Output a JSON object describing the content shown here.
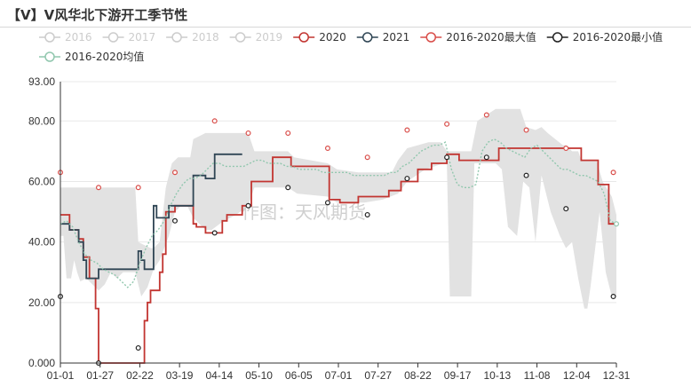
{
  "title": "【V】V风华北下游开工季节性",
  "watermark": "作图：天风期货",
  "chart_data": {
    "type": "line",
    "title": "【V】V风华北下游开工季节性",
    "xlabel": "",
    "ylabel": "",
    "x_tick_labels": [
      "01-01",
      "01-27",
      "02-22",
      "03-19",
      "04-14",
      "05-10",
      "06-05",
      "07-01",
      "07-27",
      "08-22",
      "09-17",
      "10-13",
      "11-08",
      "12-04",
      "12-31"
    ],
    "y_tick_labels": [
      "0.000",
      "20.00",
      "40.00",
      "60.00",
      "80.00",
      "93.00"
    ],
    "ylim": [
      0,
      93
    ],
    "x_domain_days": [
      1,
      365
    ],
    "grid": "horizontal",
    "legend_position": "top",
    "legend": [
      {
        "name": "2016",
        "color": "#cccccc",
        "active": false
      },
      {
        "name": "2017",
        "color": "#cccccc",
        "active": false
      },
      {
        "name": "2018",
        "color": "#cccccc",
        "active": false
      },
      {
        "name": "2019",
        "color": "#cccccc",
        "active": false
      },
      {
        "name": "2020",
        "color": "#c23531",
        "active": true
      },
      {
        "name": "2021",
        "color": "#2f4554",
        "active": true
      },
      {
        "name": "2016-2020最大值",
        "color": "#d94e4a",
        "active": true
      },
      {
        "name": "2016-2020最小值",
        "color": "#222222",
        "active": true
      },
      {
        "name": "2016-2020均值",
        "color": "#91c7ae",
        "active": true
      }
    ],
    "colors": {
      "s2020": "#c23531",
      "s2021": "#2f4554",
      "max": "#d94e4a",
      "min": "#222222",
      "mean": "#91c7ae",
      "band": "#e2e2e2",
      "grid": "#e8e8e8",
      "axis": "#333333"
    },
    "series": [
      {
        "name": "2020",
        "step": true,
        "points": [
          [
            1,
            49
          ],
          [
            5,
            49
          ],
          [
            7,
            44
          ],
          [
            10,
            44
          ],
          [
            13,
            41
          ],
          [
            16,
            35
          ],
          [
            18,
            35
          ],
          [
            20,
            28
          ],
          [
            22,
            28
          ],
          [
            24,
            18
          ],
          [
            26,
            0
          ],
          [
            54,
            0
          ],
          [
            56,
            14
          ],
          [
            58,
            20
          ],
          [
            60,
            24
          ],
          [
            64,
            24
          ],
          [
            66,
            30
          ],
          [
            68,
            36
          ],
          [
            70,
            50
          ],
          [
            74,
            50
          ],
          [
            76,
            52
          ],
          [
            86,
            52
          ],
          [
            88,
            46
          ],
          [
            90,
            45
          ],
          [
            96,
            43
          ],
          [
            105,
            43
          ],
          [
            107,
            47
          ],
          [
            110,
            49
          ],
          [
            118,
            49
          ],
          [
            120,
            52
          ],
          [
            124,
            52
          ],
          [
            126,
            60
          ],
          [
            138,
            60
          ],
          [
            140,
            68
          ],
          [
            150,
            68
          ],
          [
            152,
            65
          ],
          [
            175,
            65
          ],
          [
            177,
            54
          ],
          [
            182,
            54
          ],
          [
            184,
            53
          ],
          [
            194,
            53
          ],
          [
            196,
            55
          ],
          [
            214,
            55
          ],
          [
            216,
            57
          ],
          [
            222,
            57
          ],
          [
            224,
            60
          ],
          [
            233,
            60
          ],
          [
            235,
            64
          ],
          [
            242,
            64
          ],
          [
            244,
            66
          ],
          [
            252,
            66
          ],
          [
            254,
            69
          ],
          [
            260,
            69
          ],
          [
            262,
            67
          ],
          [
            286,
            67
          ],
          [
            288,
            71
          ],
          [
            340,
            71
          ],
          [
            342,
            67
          ],
          [
            351,
            67
          ],
          [
            353,
            59
          ],
          [
            358,
            59
          ],
          [
            360,
            46
          ],
          [
            365,
            46
          ]
        ]
      },
      {
        "name": "2021",
        "step": true,
        "points": [
          [
            1,
            46
          ],
          [
            5,
            46
          ],
          [
            7,
            44
          ],
          [
            11,
            44
          ],
          [
            13,
            40
          ],
          [
            16,
            34
          ],
          [
            18,
            28
          ],
          [
            24,
            28
          ],
          [
            26,
            31
          ],
          [
            50,
            31
          ],
          [
            52,
            37
          ],
          [
            54,
            34
          ],
          [
            56,
            31
          ],
          [
            60,
            31
          ],
          [
            62,
            52
          ],
          [
            64,
            48
          ],
          [
            70,
            48
          ],
          [
            72,
            52
          ],
          [
            80,
            52
          ],
          [
            82,
            52
          ],
          [
            86,
            52
          ],
          [
            88,
            62
          ],
          [
            94,
            62
          ],
          [
            96,
            61
          ],
          [
            100,
            61
          ],
          [
            102,
            69
          ],
          [
            120,
            69
          ]
        ]
      },
      {
        "name": "2016-2020最大值",
        "points": [
          [
            1,
            63
          ],
          [
            26,
            58
          ],
          [
            52,
            58
          ],
          [
            76,
            63
          ],
          [
            102,
            80
          ],
          [
            124,
            76
          ],
          [
            150,
            76
          ],
          [
            176,
            71
          ],
          [
            202,
            68
          ],
          [
            228,
            77
          ],
          [
            254,
            79
          ],
          [
            280,
            82
          ],
          [
            306,
            77
          ],
          [
            332,
            71
          ],
          [
            363,
            63
          ]
        ]
      },
      {
        "name": "2016-2020最小值",
        "points": [
          [
            1,
            22
          ],
          [
            26,
            0
          ],
          [
            52,
            5
          ],
          [
            76,
            47
          ],
          [
            102,
            43
          ],
          [
            124,
            52
          ],
          [
            150,
            58
          ],
          [
            176,
            53
          ],
          [
            202,
            49
          ],
          [
            228,
            61
          ],
          [
            254,
            68
          ],
          [
            280,
            68
          ],
          [
            306,
            62
          ],
          [
            332,
            51
          ],
          [
            363,
            22
          ]
        ]
      },
      {
        "name": "2016-2020均值",
        "points": [
          [
            1,
            46
          ],
          [
            5,
            47
          ],
          [
            9,
            45
          ],
          [
            13,
            40
          ],
          [
            17,
            36
          ],
          [
            21,
            34
          ],
          [
            25,
            33
          ],
          [
            29,
            31
          ],
          [
            33,
            30
          ],
          [
            37,
            29
          ],
          [
            41,
            27
          ],
          [
            45,
            25
          ],
          [
            49,
            27
          ],
          [
            53,
            33
          ],
          [
            57,
            38
          ],
          [
            61,
            42
          ],
          [
            65,
            44
          ],
          [
            69,
            47
          ],
          [
            73,
            52
          ],
          [
            77,
            56
          ],
          [
            81,
            59
          ],
          [
            85,
            61
          ],
          [
            89,
            61
          ],
          [
            93,
            62
          ],
          [
            97,
            64
          ],
          [
            101,
            66
          ],
          [
            105,
            66
          ],
          [
            109,
            65
          ],
          [
            113,
            65
          ],
          [
            117,
            65
          ],
          [
            121,
            65
          ],
          [
            125,
            66
          ],
          [
            129,
            67
          ],
          [
            133,
            67
          ],
          [
            137,
            66
          ],
          [
            141,
            66
          ],
          [
            145,
            66
          ],
          [
            149,
            65
          ],
          [
            153,
            65
          ],
          [
            157,
            64
          ],
          [
            161,
            64
          ],
          [
            165,
            64
          ],
          [
            169,
            64
          ],
          [
            173,
            63
          ],
          [
            177,
            63
          ],
          [
            181,
            63
          ],
          [
            185,
            63
          ],
          [
            189,
            63
          ],
          [
            193,
            62
          ],
          [
            197,
            62
          ],
          [
            201,
            62
          ],
          [
            205,
            62
          ],
          [
            209,
            62
          ],
          [
            213,
            62
          ],
          [
            217,
            63
          ],
          [
            221,
            63
          ],
          [
            225,
            65
          ],
          [
            229,
            66
          ],
          [
            233,
            68
          ],
          [
            237,
            70
          ],
          [
            241,
            71
          ],
          [
            245,
            72
          ],
          [
            249,
            72
          ],
          [
            253,
            73
          ],
          [
            257,
            64
          ],
          [
            261,
            59
          ],
          [
            265,
            58
          ],
          [
            269,
            58
          ],
          [
            273,
            59
          ],
          [
            277,
            70
          ],
          [
            281,
            73
          ],
          [
            285,
            74
          ],
          [
            289,
            73
          ],
          [
            293,
            71
          ],
          [
            297,
            70
          ],
          [
            301,
            69
          ],
          [
            305,
            68
          ],
          [
            309,
            71
          ],
          [
            313,
            72
          ],
          [
            317,
            70
          ],
          [
            321,
            68
          ],
          [
            325,
            66
          ],
          [
            329,
            64
          ],
          [
            333,
            64
          ],
          [
            337,
            63
          ],
          [
            341,
            62
          ],
          [
            345,
            62
          ],
          [
            349,
            61
          ],
          [
            353,
            60
          ],
          [
            357,
            56
          ],
          [
            361,
            47
          ],
          [
            365,
            46
          ]
        ]
      }
    ],
    "band": {
      "name": "2016-2020 range",
      "upper": [
        [
          1,
          58
        ],
        [
          26,
          58
        ],
        [
          50,
          58
        ],
        [
          52,
          40
        ],
        [
          60,
          38
        ],
        [
          62,
          38
        ],
        [
          66,
          40
        ],
        [
          70,
          58
        ],
        [
          74,
          66
        ],
        [
          78,
          68
        ],
        [
          80,
          68
        ],
        [
          86,
          68
        ],
        [
          88,
          74
        ],
        [
          96,
          76
        ],
        [
          100,
          76
        ],
        [
          104,
          76
        ],
        [
          124,
          76
        ],
        [
          128,
          70
        ],
        [
          150,
          70
        ],
        [
          154,
          68
        ],
        [
          176,
          66
        ],
        [
          182,
          64
        ],
        [
          196,
          63
        ],
        [
          218,
          63
        ],
        [
          222,
          67
        ],
        [
          228,
          71
        ],
        [
          242,
          73
        ],
        [
          250,
          73
        ],
        [
          254,
          70
        ],
        [
          270,
          70
        ],
        [
          274,
          80
        ],
        [
          280,
          82
        ],
        [
          286,
          84
        ],
        [
          302,
          84
        ],
        [
          306,
          78
        ],
        [
          312,
          77
        ],
        [
          316,
          78
        ],
        [
          320,
          76
        ],
        [
          330,
          72
        ],
        [
          332,
          72
        ],
        [
          336,
          70
        ],
        [
          340,
          70
        ],
        [
          342,
          67
        ],
        [
          352,
          67
        ],
        [
          356,
          60
        ],
        [
          362,
          55
        ],
        [
          365,
          49
        ]
      ],
      "lower": [
        [
          1,
          42
        ],
        [
          3,
          42
        ],
        [
          5,
          28
        ],
        [
          8,
          28
        ],
        [
          10,
          34
        ],
        [
          12,
          30
        ],
        [
          14,
          27
        ],
        [
          18,
          28
        ],
        [
          22,
          26
        ],
        [
          26,
          24
        ],
        [
          30,
          26
        ],
        [
          34,
          30
        ],
        [
          38,
          28
        ],
        [
          42,
          30
        ],
        [
          50,
          30
        ],
        [
          54,
          22
        ],
        [
          58,
          25
        ],
        [
          62,
          31
        ],
        [
          66,
          34
        ],
        [
          72,
          42
        ],
        [
          76,
          50
        ],
        [
          80,
          52
        ],
        [
          84,
          52
        ],
        [
          88,
          48
        ],
        [
          92,
          46
        ],
        [
          96,
          44
        ],
        [
          100,
          44
        ],
        [
          108,
          47
        ],
        [
          116,
          49
        ],
        [
          124,
          52
        ],
        [
          128,
          58
        ],
        [
          140,
          58
        ],
        [
          150,
          58
        ],
        [
          156,
          56
        ],
        [
          176,
          55
        ],
        [
          182,
          53
        ],
        [
          200,
          53
        ],
        [
          212,
          54
        ],
        [
          222,
          56
        ],
        [
          228,
          60
        ],
        [
          240,
          64
        ],
        [
          252,
          66
        ],
        [
          254,
          66
        ],
        [
          256,
          22
        ],
        [
          270,
          22
        ],
        [
          272,
          66
        ],
        [
          286,
          66
        ],
        [
          290,
          64
        ],
        [
          294,
          45
        ],
        [
          300,
          42
        ],
        [
          304,
          60
        ],
        [
          308,
          58
        ],
        [
          312,
          40
        ],
        [
          316,
          62
        ],
        [
          322,
          50
        ],
        [
          328,
          42
        ],
        [
          332,
          38
        ],
        [
          336,
          40
        ],
        [
          340,
          28
        ],
        [
          344,
          18
        ],
        [
          346,
          18
        ],
        [
          348,
          25
        ],
        [
          354,
          50
        ],
        [
          358,
          30
        ],
        [
          362,
          22
        ],
        [
          365,
          22
        ]
      ]
    }
  }
}
